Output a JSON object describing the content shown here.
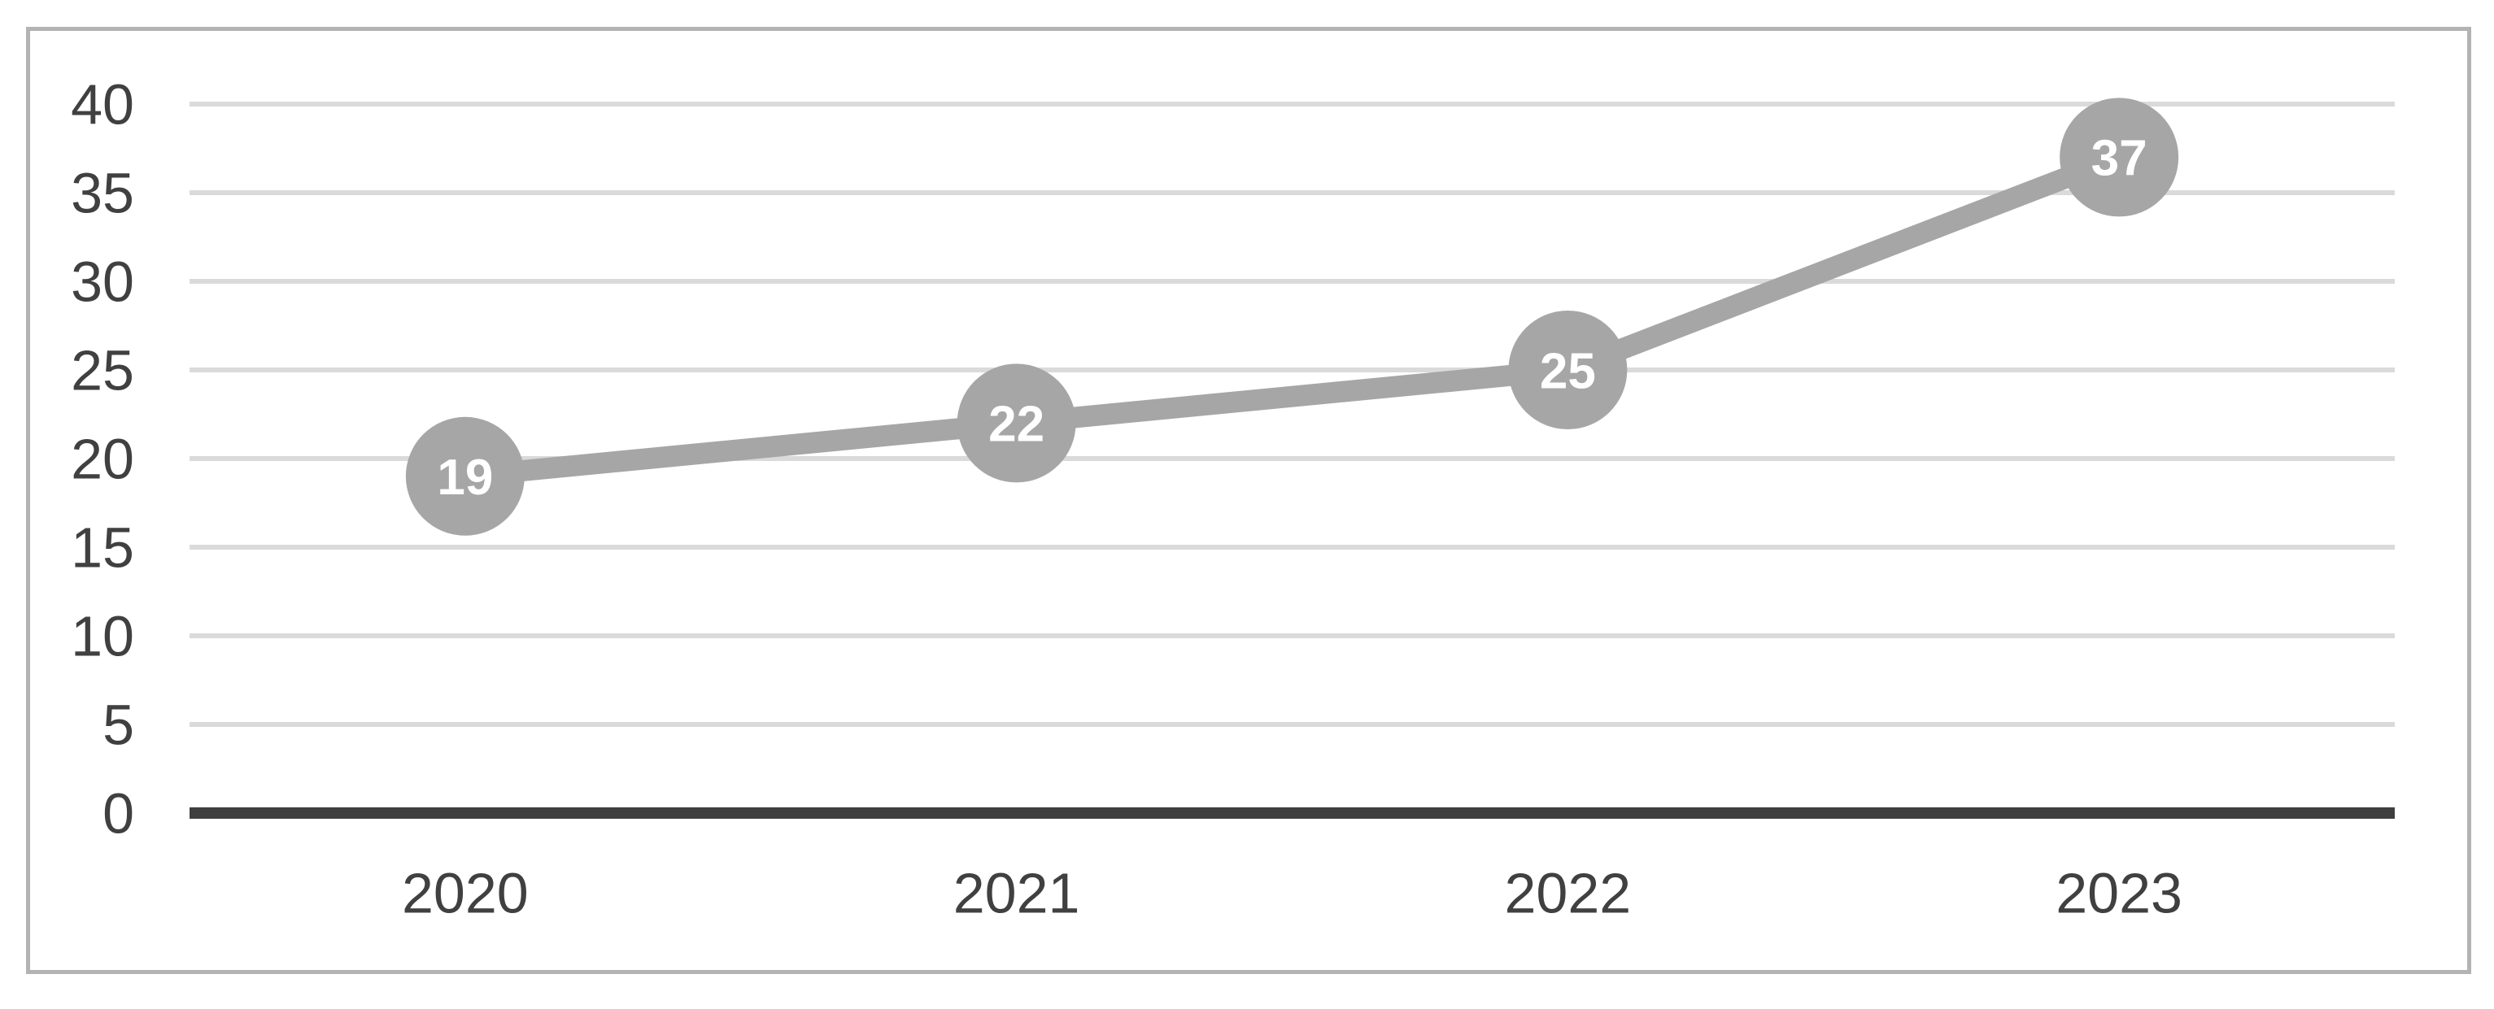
{
  "chart_data": {
    "type": "line",
    "title": "",
    "xlabel": "",
    "ylabel": "",
    "categories": [
      "2020",
      "2021",
      "2022",
      "2023"
    ],
    "series": [
      {
        "name": "",
        "values": [
          19,
          22,
          25,
          37
        ]
      }
    ],
    "values": [
      19,
      22,
      25,
      37
    ],
    "y_ticks": [
      0,
      5,
      10,
      15,
      20,
      25,
      30,
      35,
      40
    ],
    "ylim": [
      0,
      40
    ],
    "grid": true,
    "legend_position": "none",
    "data_labels_shown": true,
    "marker_shape": "circle"
  },
  "colors": {
    "series_line": "#a6a6a6",
    "marker_fill": "#a6a6a6",
    "data_label_text": "#ffffff",
    "gridline": "#dadada",
    "axis_line": "#3f3f3f",
    "tick_label_text": "#404040",
    "frame_border": "#b3b3b3",
    "background": "#ffffff"
  }
}
